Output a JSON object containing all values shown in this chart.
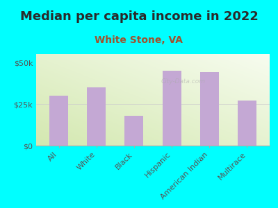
{
  "title": "Median per capita income in 2022",
  "subtitle": "White Stone, VA",
  "categories": [
    "All",
    "White",
    "Black",
    "Hispanic",
    "American Indian",
    "Multirace"
  ],
  "values": [
    30000,
    35000,
    18000,
    45000,
    44000,
    27000
  ],
  "bar_color": "#c4a8d4",
  "background_color": "#00FFFF",
  "title_color": "#2a2a2a",
  "subtitle_color": "#a0522d",
  "tick_color": "#555555",
  "yticks": [
    0,
    25000,
    50000
  ],
  "ytick_labels": [
    "$0",
    "$25k",
    "$50k"
  ],
  "ylim": [
    0,
    55000
  ],
  "title_fontsize": 13,
  "subtitle_fontsize": 10,
  "tick_fontsize": 8
}
